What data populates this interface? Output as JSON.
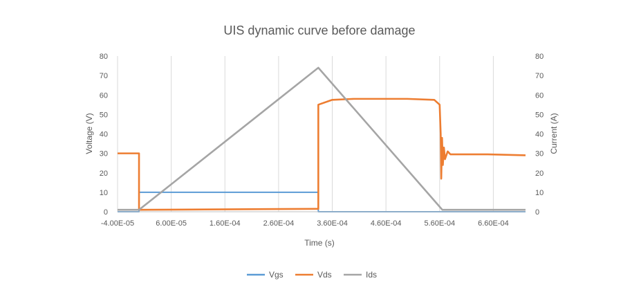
{
  "chart_data": {
    "type": "line",
    "title": "UIS dynamic curve before damage",
    "xlabel": "Time (s)",
    "ylabel": "Voltage (V)",
    "y2label": "Current (A)",
    "xlim": [
      -4e-05,
      0.00072
    ],
    "ylim": [
      0,
      80
    ],
    "y2lim": [
      0,
      80
    ],
    "x_ticks": [
      -4e-05,
      6e-05,
      0.00016,
      0.00026,
      0.00036,
      0.00046,
      0.00056,
      0.00066
    ],
    "x_tick_labels": [
      "-4.00E-05",
      "6.00E-05",
      "1.60E-04",
      "2.60E-04",
      "3.60E-04",
      "4.60E-04",
      "5.60E-04",
      "6.60E-04"
    ],
    "y_ticks": [
      0,
      10,
      20,
      30,
      40,
      50,
      60,
      70,
      80
    ],
    "y_tick_labels": [
      "0",
      "10",
      "20",
      "30",
      "40",
      "50",
      "60",
      "70",
      "80"
    ],
    "y2_tick_labels": [
      "0",
      "10",
      "20",
      "30",
      "40",
      "50",
      "60",
      "70",
      "80"
    ],
    "grid": "vertical",
    "legend_position": "bottom",
    "series": [
      {
        "name": "Vgs",
        "axis": "left",
        "color": "#5B9BD5",
        "x": [
          -4e-05,
          0.0,
          0.0,
          0.000334,
          0.000334,
          0.00072
        ],
        "y": [
          0,
          0,
          10,
          10,
          0,
          0
        ]
      },
      {
        "name": "Vds",
        "axis": "left",
        "color": "#ED7D31",
        "x": [
          -4e-05,
          0.0,
          0.0,
          0.00033,
          0.000334,
          0.000334,
          0.00036,
          0.0004,
          0.00045,
          0.0005,
          0.00055,
          0.00056,
          0.000562,
          0.000563,
          0.0005645,
          0.000566,
          0.000568,
          0.00057,
          0.000575,
          0.00058,
          0.0006,
          0.00065,
          0.00072
        ],
        "y": [
          30,
          30,
          1,
          1.5,
          1.5,
          55,
          57.5,
          58,
          58,
          58,
          57.5,
          55,
          40,
          17,
          38,
          24,
          33,
          27,
          31,
          29.5,
          29.5,
          29.5,
          29
        ]
      },
      {
        "name": "Ids",
        "axis": "right",
        "color": "#A5A5A5",
        "x": [
          -4e-05,
          0.0,
          0.000334,
          0.000565,
          0.00072
        ],
        "y": [
          1,
          1,
          74,
          1,
          1
        ]
      }
    ]
  }
}
